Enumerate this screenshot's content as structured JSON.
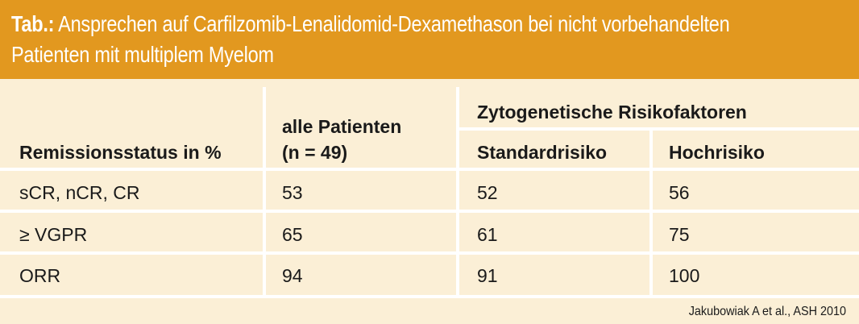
{
  "title": {
    "label": "Tab.:",
    "line1": "Ansprechen auf Carfilzomib-Lenalidomid-Dexamethason bei nicht vorbehandelten",
    "line2": "Patienten mit multiplem Myelom"
  },
  "colors": {
    "header_bg": "#e2981f",
    "table_bg": "#fbefd6",
    "grid": "#ffffff"
  },
  "table": {
    "header": {
      "col1": "Remissionsstatus in %",
      "col2_line1": "alle Patienten",
      "col2_line2": "(n = 49)",
      "group": "Zytogenetische Risikofaktoren",
      "col3": "Standardrisiko",
      "col4": "Hochrisiko"
    },
    "rows": [
      {
        "status": "sCR, nCR, CR",
        "all": "53",
        "standard": "52",
        "high": "56"
      },
      {
        "status": "≥ VGPR",
        "all": "65",
        "standard": "61",
        "high": "75"
      },
      {
        "status": "ORR",
        "all": "94",
        "standard": "91",
        "high": "100"
      }
    ]
  },
  "source": "Jakubowiak A et al., ASH 2010"
}
